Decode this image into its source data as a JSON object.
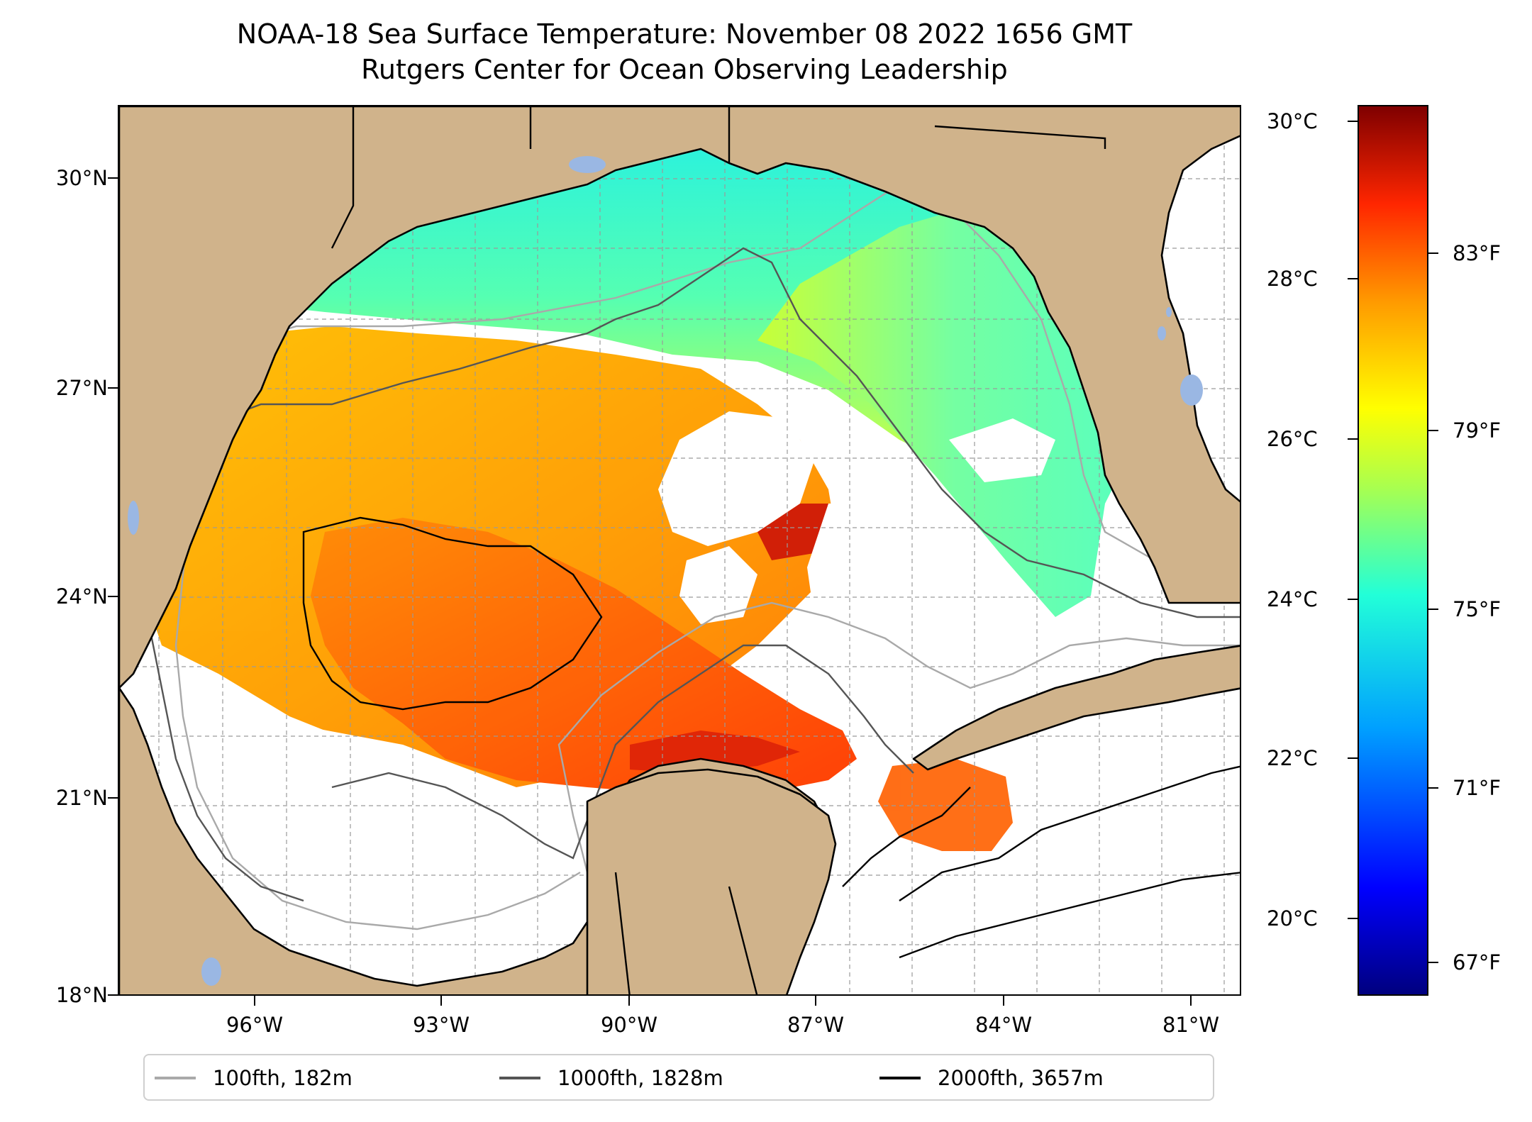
{
  "title": {
    "line1": "NOAA-18 Sea Surface Temperature: November 08 2022 1656 GMT",
    "line2": "Rutgers Center for Ocean Observing Leadership"
  },
  "map": {
    "lat_labels": [
      "30°N",
      "27°N",
      "24°N",
      "21°N",
      "18°N"
    ],
    "lon_labels": [
      "96°W",
      "93°W",
      "90°W",
      "87°W",
      "84°W",
      "81°W"
    ],
    "land_color": "#d0b38b",
    "lake_color": "#9ab7e3",
    "gridlines": true
  },
  "colorbar": {
    "celsius_labels": [
      "30°C",
      "28°C",
      "26°C",
      "24°C",
      "22°C",
      "20°C"
    ],
    "fahrenheit_labels": [
      "83°F",
      "79°F",
      "75°F",
      "71°F",
      "67°F"
    ],
    "colormap": "jet"
  },
  "legend": {
    "items": [
      {
        "label": "100fth, 182m",
        "color": "#a9a9a9"
      },
      {
        "label": "1000fth, 1828m",
        "color": "#555555"
      },
      {
        "label": "2000fth, 3657m",
        "color": "#000000"
      }
    ]
  }
}
